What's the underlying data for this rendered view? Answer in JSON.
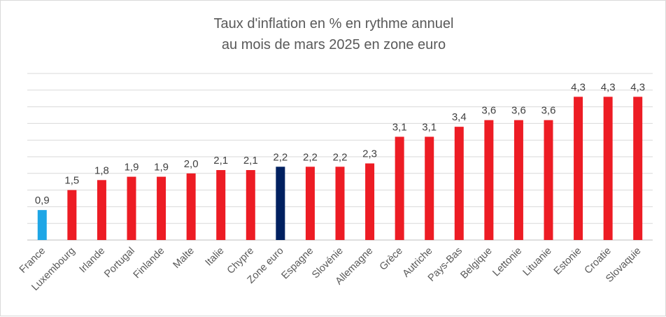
{
  "chart_data": {
    "type": "bar",
    "title_lines": [
      "Taux d'inflation en % en rythme annuel",
      "au mois de mars 2025  en zone euro"
    ],
    "xlabel": "",
    "ylabel": "",
    "ylim": [
      0,
      5
    ],
    "grid": true,
    "legend": "none",
    "categories": [
      "France",
      "Luxembourg",
      "Irlande",
      "Portugal",
      "Finlande",
      "Malte",
      "Italie",
      "Chypre",
      "Zone euro",
      "Espagne",
      "Slovénie",
      "Allemagne",
      "Grèce",
      "Autriche",
      "Pays-Bas",
      "Belgique",
      "Lettonie",
      "Lituanie",
      "Estonie",
      "Croatie",
      "Slovaquie"
    ],
    "values": [
      0.9,
      1.5,
      1.8,
      1.9,
      1.9,
      2.0,
      2.1,
      2.1,
      2.2,
      2.2,
      2.2,
      2.3,
      3.1,
      3.1,
      3.4,
      3.6,
      3.6,
      3.6,
      4.3,
      4.3,
      4.3
    ],
    "value_labels": [
      "0,9",
      "1,5",
      "1,8",
      "1,9",
      "1,9",
      "2,0",
      "2,1",
      "2,1",
      "2,2",
      "2,2",
      "2,2",
      "2,3",
      "3,1",
      "3,1",
      "3,4",
      "3,6",
      "3,6",
      "3,6",
      "4,3",
      "4,3",
      "4,3"
    ],
    "colors": {
      "default": "#ed1c24",
      "France": "#1ea6e6",
      "Zone euro": "#002060"
    }
  }
}
